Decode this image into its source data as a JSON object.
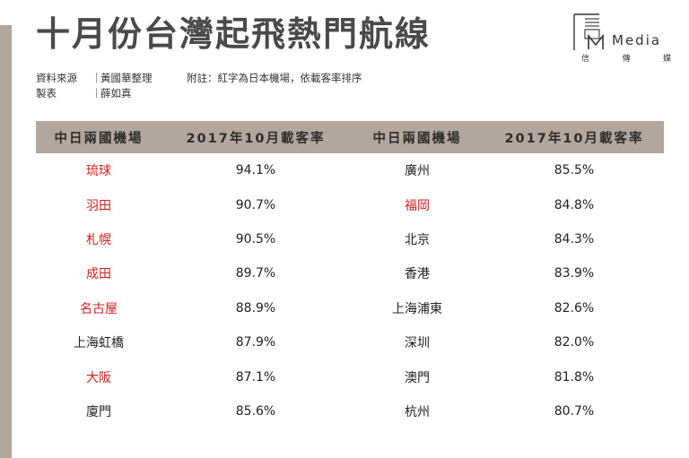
{
  "title": "十月份台灣起飛熱門航線",
  "logo": {
    "word": "Media",
    "sub": [
      "信",
      "傳",
      "媒"
    ]
  },
  "meta": {
    "source_label": "資料來源",
    "source_value": "黃國華整理",
    "note": "附註：紅字為日本機場，依載客率排序",
    "maker_label": "製表",
    "maker_value": "薛如真",
    "separator": "｜"
  },
  "colors": {
    "header_bg": "#b3a69c",
    "japan_text": "#d21f1f",
    "normal_text": "#222222"
  },
  "table": {
    "headers": [
      "中日兩國機場",
      "2017年10月載客率",
      "中日兩國機場",
      "2017年10月載客率"
    ],
    "rows": [
      {
        "left_airport": "琉球",
        "left_rate": "94.1%",
        "left_japan": true,
        "right_airport": "廣州",
        "right_rate": "85.5%",
        "right_japan": false
      },
      {
        "left_airport": "羽田",
        "left_rate": "90.7%",
        "left_japan": true,
        "right_airport": "福岡",
        "right_rate": "84.8%",
        "right_japan": true
      },
      {
        "left_airport": "札幌",
        "left_rate": "90.5%",
        "left_japan": true,
        "right_airport": "北京",
        "right_rate": "84.3%",
        "right_japan": false
      },
      {
        "left_airport": "成田",
        "left_rate": "89.7%",
        "left_japan": true,
        "right_airport": "香港",
        "right_rate": "83.9%",
        "right_japan": false
      },
      {
        "left_airport": "名古屋",
        "left_rate": "88.9%",
        "left_japan": true,
        "right_airport": "上海浦東",
        "right_rate": "82.6%",
        "right_japan": false
      },
      {
        "left_airport": "上海虹橋",
        "left_rate": "87.9%",
        "left_japan": false,
        "right_airport": "深圳",
        "right_rate": "82.0%",
        "right_japan": false
      },
      {
        "left_airport": "大阪",
        "left_rate": "87.1%",
        "left_japan": true,
        "right_airport": "澳門",
        "right_rate": "81.8%",
        "right_japan": false
      },
      {
        "left_airport": "廈門",
        "left_rate": "85.6%",
        "left_japan": false,
        "right_airport": "杭州",
        "right_rate": "80.7%",
        "right_japan": false
      }
    ]
  }
}
